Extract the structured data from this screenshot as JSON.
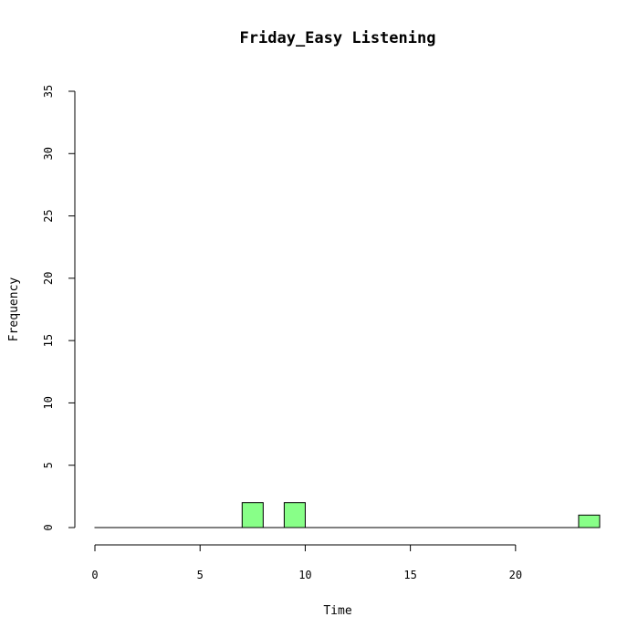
{
  "chart_data": {
    "type": "bar",
    "title": "Friday_Easy Listening",
    "xlabel": "Time",
    "ylabel": "Frequency",
    "xlim": [
      0,
      24
    ],
    "ylim": [
      0,
      35
    ],
    "x_ticks": [
      0,
      5,
      10,
      15,
      20
    ],
    "y_ticks": [
      0,
      5,
      10,
      15,
      20,
      25,
      30,
      35
    ],
    "bin_width": 1,
    "bins": [
      {
        "start": 0,
        "value": 0
      },
      {
        "start": 1,
        "value": 0
      },
      {
        "start": 2,
        "value": 0
      },
      {
        "start": 3,
        "value": 0
      },
      {
        "start": 4,
        "value": 0
      },
      {
        "start": 5,
        "value": 0
      },
      {
        "start": 6,
        "value": 0
      },
      {
        "start": 7,
        "value": 2
      },
      {
        "start": 8,
        "value": 0
      },
      {
        "start": 9,
        "value": 2
      },
      {
        "start": 10,
        "value": 0
      },
      {
        "start": 11,
        "value": 0
      },
      {
        "start": 12,
        "value": 0
      },
      {
        "start": 13,
        "value": 0
      },
      {
        "start": 14,
        "value": 0
      },
      {
        "start": 15,
        "value": 0
      },
      {
        "start": 16,
        "value": 0
      },
      {
        "start": 17,
        "value": 0
      },
      {
        "start": 18,
        "value": 0
      },
      {
        "start": 19,
        "value": 0
      },
      {
        "start": 20,
        "value": 0
      },
      {
        "start": 21,
        "value": 0
      },
      {
        "start": 22,
        "value": 0
      },
      {
        "start": 23,
        "value": 1
      }
    ],
    "bar_color": "#88ff88",
    "grid": false
  }
}
